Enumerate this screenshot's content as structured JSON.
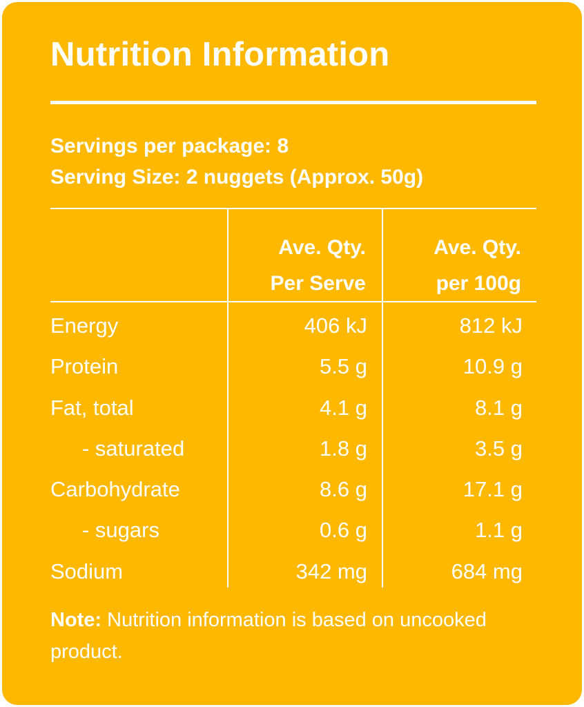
{
  "title": "Nutrition Information",
  "servings_per_package": "Servings per package: 8",
  "serving_size": "Serving Size: 2 nuggets (Approx. 50g)",
  "columns": {
    "per_serve_line1": "Ave. Qty.",
    "per_serve_line2": "Per Serve",
    "per_100g_line1": "Ave. Qty.",
    "per_100g_line2": "per 100g"
  },
  "rows": [
    {
      "label": "Energy",
      "per_serve": "406 kJ",
      "per_100g": "812 kJ"
    },
    {
      "label": "Protein",
      "per_serve": "5.5 g",
      "per_100g": "10.9 g"
    },
    {
      "label": "Fat, total",
      "per_serve": "4.1 g",
      "per_100g": "8.1 g"
    },
    {
      "label": "- saturated",
      "per_serve": "1.8 g",
      "per_100g": "3.5 g"
    },
    {
      "label": "Carbohydrate",
      "per_serve": "8.6 g",
      "per_100g": "17.1 g"
    },
    {
      "label": "- sugars",
      "per_serve": "0.6 g",
      "per_100g": "1.1 g"
    },
    {
      "label": "Sodium",
      "per_serve": "342 mg",
      "per_100g": "684 mg"
    }
  ],
  "note": {
    "label": "Note:",
    "text": " Nutrition information is based on uncooked product."
  },
  "colors": {
    "background": "#FFB800",
    "text": "#FFFFFF"
  }
}
